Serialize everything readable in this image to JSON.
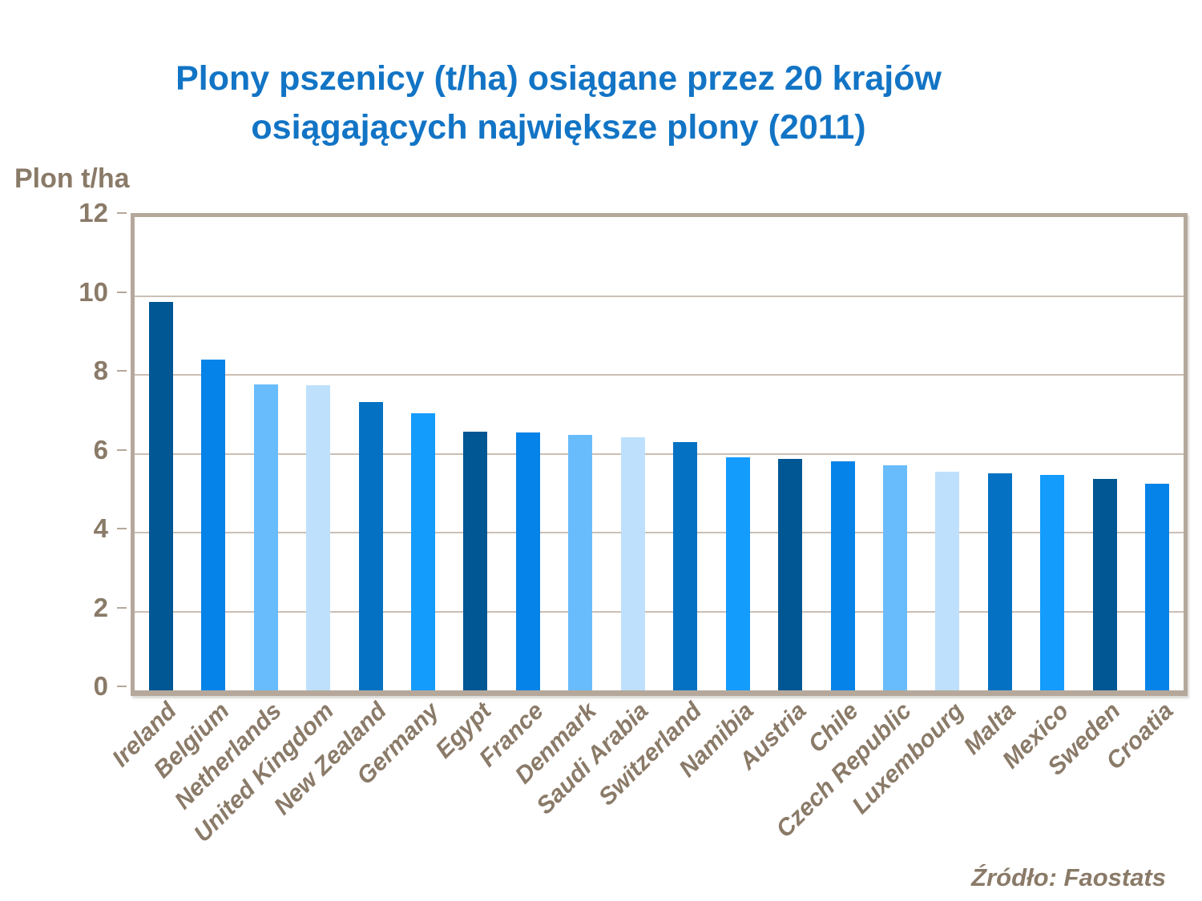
{
  "title": {
    "line1": "Plony pszenicy (t/ha) osiągane przez 20 krajów",
    "line2": "osiągających największe plony (2011)"
  },
  "source": "Źródło: Faostats",
  "colors": {
    "title_text": "#1274C5",
    "axis_text": "#8A7A68",
    "gridline": "#CBBFB4",
    "frame": "#B5A89B"
  },
  "chart_data": {
    "type": "bar",
    "title": "Plony pszenicy (t/ha) osiągane przez 20 krajów osiągających największe plony (2011)",
    "ylabel": "Plon t/ha",
    "xlabel": "",
    "ylim": [
      0,
      12
    ],
    "yticks": [
      0,
      2,
      4,
      6,
      8,
      10,
      12
    ],
    "grid": "horizontal",
    "legend": false,
    "categories": [
      "Ireland",
      "Belgium",
      "Netherlands",
      "United Kingdom",
      "New Zealand",
      "Germany",
      "Egypt",
      "France",
      "Denmark",
      "Saudi Arabia",
      "Switzerland",
      "Namibia",
      "Austria",
      "Chile",
      "Czech Republic",
      "Luxembourg",
      "Malta",
      "Mexico",
      "Sweden",
      "Croatia"
    ],
    "values": [
      9.85,
      8.39,
      7.76,
      7.74,
      7.3,
      7.02,
      6.56,
      6.53,
      6.48,
      6.41,
      6.3,
      5.9,
      5.87,
      5.81,
      5.7,
      5.54,
      5.5,
      5.47,
      5.37,
      5.23
    ],
    "bar_color_cycle": [
      "#005793",
      "#0583E8",
      "#69BCFC",
      "#BEE0FC",
      "#0571C3",
      "#149CFD"
    ]
  }
}
